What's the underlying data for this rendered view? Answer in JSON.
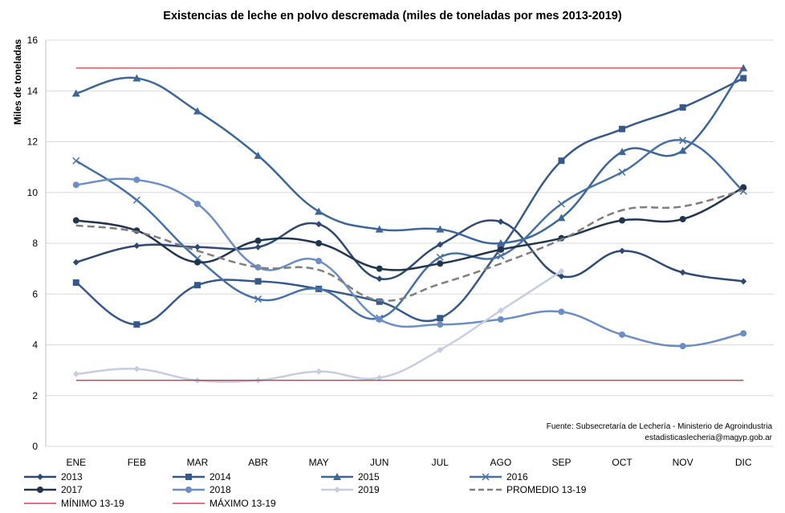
{
  "chart_data": {
    "type": "line",
    "title": "Existencias de leche en polvo descremada (miles de toneladas por mes 2013-2019)",
    "xlabel": "",
    "ylabel": "Miles de toneladas",
    "ylim": [
      0,
      16
    ],
    "yticks": [
      0,
      2,
      4,
      6,
      8,
      10,
      12,
      14,
      16
    ],
    "grid": "horizontal",
    "legend_position": "bottom",
    "categories": [
      "ENE",
      "FEB",
      "MAR",
      "ABR",
      "MAY",
      "JUN",
      "JUL",
      "AGO",
      "SEP",
      "OCT",
      "NOV",
      "DIC"
    ],
    "series": [
      {
        "name": "2013",
        "color": "#2e4a72",
        "marker": "diamond",
        "dash": "none",
        "values": [
          7.25,
          7.9,
          7.85,
          7.85,
          8.75,
          6.6,
          7.95,
          8.85,
          6.7,
          7.7,
          6.85,
          6.5
        ]
      },
      {
        "name": "2014",
        "color": "#34598a",
        "marker": "square",
        "dash": "none",
        "values": [
          6.45,
          4.8,
          6.35,
          6.5,
          6.2,
          5.7,
          5.05,
          7.8,
          11.25,
          12.5,
          13.35,
          14.5
        ]
      },
      {
        "name": "2015",
        "color": "#3d6797",
        "marker": "triangle",
        "dash": "none",
        "values": [
          13.9,
          14.5,
          13.2,
          11.45,
          9.25,
          8.55,
          8.55,
          8.0,
          9.0,
          11.6,
          11.65,
          14.9
        ]
      },
      {
        "name": "2016",
        "color": "#4671a6",
        "marker": "x",
        "dash": "none",
        "values": [
          11.25,
          9.7,
          7.4,
          5.8,
          6.2,
          5.05,
          7.45,
          7.5,
          9.55,
          10.8,
          12.05,
          10.05
        ]
      },
      {
        "name": "2017",
        "color": "#22354f",
        "marker": "circle",
        "dash": "none",
        "values": [
          8.9,
          8.5,
          7.25,
          8.1,
          8.0,
          7.0,
          7.2,
          7.75,
          8.2,
          8.9,
          8.95,
          10.2
        ]
      },
      {
        "name": "2018",
        "color": "#6b8fc4",
        "marker": "circle",
        "dash": "none",
        "values": [
          10.3,
          10.5,
          9.55,
          7.05,
          7.3,
          5.0,
          4.8,
          5.0,
          5.3,
          4.4,
          3.95,
          4.45
        ]
      },
      {
        "name": "2019",
        "color": "#c5cee0",
        "marker": "diamond",
        "dash": "none",
        "values": [
          2.85,
          3.05,
          2.6,
          2.6,
          2.95,
          2.7,
          3.8,
          5.35,
          6.9,
          null,
          null,
          null
        ]
      },
      {
        "name": "PROMEDIO 13-19",
        "color": "#7f7f7f",
        "marker": "none",
        "dash": "dashed",
        "values": [
          8.7,
          8.45,
          7.7,
          7.05,
          6.95,
          5.75,
          6.4,
          7.2,
          8.15,
          9.3,
          9.45,
          10.1
        ]
      },
      {
        "name": "MÍNIMO 13-19",
        "color": "#c0282e",
        "marker": "none",
        "dash": "none",
        "values": [
          2.6,
          2.6,
          2.6,
          2.6,
          2.6,
          2.6,
          2.6,
          2.6,
          2.6,
          2.6,
          2.6,
          2.6
        ]
      },
      {
        "name": "MÁXIMO 13-19",
        "color": "#c0282e",
        "marker": "none",
        "dash": "none",
        "values": [
          14.9,
          14.9,
          14.9,
          14.9,
          14.9,
          14.9,
          14.9,
          14.9,
          14.9,
          14.9,
          14.9,
          14.9
        ]
      }
    ],
    "annotations": [
      "Fuente: Subsecretaría de Lechería - Ministerio de Agroindustria",
      "estadisticaslecheria@magyp.gob.ar"
    ]
  }
}
